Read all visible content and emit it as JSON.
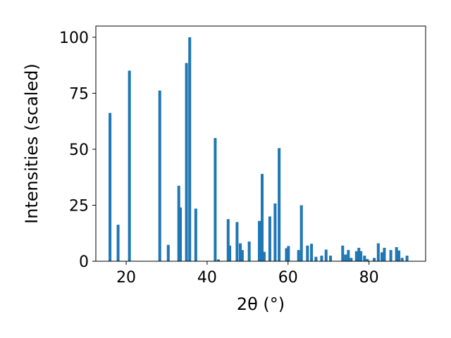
{
  "chart_data": {
    "type": "bar",
    "xlabel": "2θ (°)",
    "ylabel": "Intensities (scaled)",
    "xlim": [
      12.5,
      94.0
    ],
    "ylim": [
      0,
      105
    ],
    "x_ticks": [
      20,
      40,
      60,
      80
    ],
    "y_ticks": [
      0,
      25,
      50,
      75,
      100
    ],
    "bar_color": "#1f77b4",
    "bar_width": 0.7,
    "x": [
      16.0,
      18.0,
      20.8,
      28.3,
      30.4,
      33.0,
      33.4,
      34.9,
      35.7,
      37.2,
      42.0,
      42.8,
      45.2,
      45.6,
      47.4,
      48.2,
      48.7,
      50.4,
      52.9,
      53.6,
      54.1,
      55.5,
      56.8,
      57.8,
      59.6,
      60.1,
      62.6,
      63.3,
      64.8,
      65.8,
      66.9,
      68.3,
      69.4,
      70.5,
      73.5,
      74.2,
      74.9,
      75.6,
      76.9,
      77.5,
      78.0,
      78.9,
      79.6,
      81.3,
      82.3,
      83.2,
      83.8,
      85.4,
      86.8,
      87.4,
      88.2,
      89.4
    ],
    "values": [
      66.2,
      16.3,
      85.1,
      76.2,
      7.3,
      33.7,
      24.0,
      88.5,
      100.0,
      23.5,
      55.0,
      0.8,
      18.8,
      7.0,
      17.5,
      8.0,
      5.0,
      8.8,
      18.0,
      39.0,
      4.2,
      20.0,
      25.8,
      50.5,
      5.8,
      6.8,
      5.0,
      25.0,
      7.0,
      7.8,
      2.0,
      2.5,
      5.2,
      2.5,
      7.0,
      3.0,
      5.0,
      1.5,
      4.5,
      6.0,
      4.5,
      2.5,
      1.0,
      1.5,
      8.0,
      4.0,
      6.0,
      5.0,
      6.3,
      4.8,
      1.5,
      2.5
    ]
  }
}
